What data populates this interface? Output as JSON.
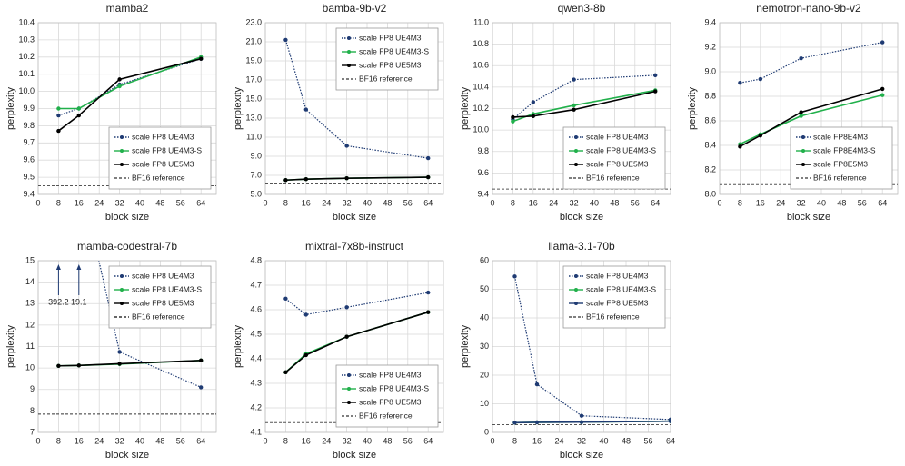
{
  "chart_data": [
    {
      "type": "line",
      "title": "mamba2",
      "x_label": "block size",
      "y_label": "perplexity",
      "x": [
        8,
        16,
        32,
        64
      ],
      "xlim": [
        0,
        70
      ],
      "xticks": [
        0,
        8,
        16,
        24,
        32,
        40,
        48,
        56,
        64
      ],
      "ylim": [
        9.4,
        10.4
      ],
      "yticks": [
        9.4,
        9.5,
        9.6,
        9.7,
        9.8,
        9.9,
        {
          "value": 10,
          "label": "10.0"
        },
        10.1,
        10.2,
        10.3,
        10.4
      ],
      "grid": true,
      "legend": "lower right",
      "series": [
        {
          "name": "scale FP8 UE4M3",
          "color": "#1f3b73",
          "style": "dotted",
          "values": [
            9.86,
            9.9,
            10.04,
            10.19
          ]
        },
        {
          "name": "scale FP8 UE4M3-S",
          "color": "#21b04b",
          "style": "solid",
          "values": [
            9.9,
            9.9,
            10.03,
            10.2
          ]
        },
        {
          "name": "scale FP8 UE5M3",
          "color": "#000000",
          "style": "solid",
          "values": [
            9.77,
            9.86,
            10.07,
            10.19
          ]
        }
      ],
      "reference": {
        "name": "BF16 reference",
        "value": 9.45,
        "color": "#555555"
      }
    },
    {
      "type": "line",
      "title": "bamba-9b-v2",
      "x_label": "block size",
      "y_label": "perplexity",
      "x": [
        8,
        16,
        32,
        64
      ],
      "xlim": [
        0,
        70
      ],
      "xticks": [
        0,
        8,
        16,
        24,
        32,
        40,
        48,
        56,
        64
      ],
      "ylim": [
        5,
        23
      ],
      "yticks": [
        {
          "value": 5,
          "label": "5.0"
        },
        {
          "value": 7,
          "label": "7.0"
        },
        {
          "value": 9,
          "label": "9.0"
        },
        {
          "value": 11,
          "label": "11.0"
        },
        {
          "value": 13,
          "label": "13.0"
        },
        {
          "value": 15,
          "label": "15.0"
        },
        {
          "value": 17,
          "label": "17.0"
        },
        {
          "value": 19,
          "label": "19.0"
        },
        {
          "value": 21,
          "label": "21.0"
        },
        {
          "value": 23,
          "label": "23.0"
        }
      ],
      "grid": true,
      "legend": "upper right",
      "series": [
        {
          "name": "scale FP8 UE4M3",
          "color": "#1f3b73",
          "style": "dotted",
          "values": [
            21.2,
            13.9,
            10.1,
            8.8
          ]
        },
        {
          "name": "scale FP8 UE4M3-S",
          "color": "#21b04b",
          "style": "solid",
          "values": [
            6.5,
            6.6,
            6.7,
            6.8
          ]
        },
        {
          "name": "scale FP8 UE5M3",
          "color": "#000000",
          "style": "solid",
          "values": [
            6.5,
            6.6,
            6.7,
            6.8
          ]
        }
      ],
      "reference": {
        "name": "BF16 reference",
        "value": 6.1,
        "color": "#555555"
      }
    },
    {
      "type": "line",
      "title": "qwen3-8b",
      "x_label": "block size",
      "y_label": "perplexity",
      "x": [
        8,
        16,
        32,
        64
      ],
      "xlim": [
        0,
        70
      ],
      "xticks": [
        0,
        8,
        16,
        24,
        32,
        40,
        48,
        56,
        64
      ],
      "ylim": [
        9.4,
        11
      ],
      "yticks": [
        9.4,
        9.6,
        9.8,
        {
          "value": 10,
          "label": "10.0"
        },
        10.2,
        10.4,
        10.6,
        10.8,
        {
          "value": 11,
          "label": "11.0"
        }
      ],
      "grid": true,
      "legend": "lower right",
      "series": [
        {
          "name": "scale FP8 UE4M3",
          "color": "#1f3b73",
          "style": "dotted",
          "values": [
            10.1,
            10.26,
            10.47,
            10.51
          ]
        },
        {
          "name": "scale FP8 UE4M3-S",
          "color": "#21b04b",
          "style": "solid",
          "values": [
            10.08,
            10.15,
            10.23,
            10.37
          ]
        },
        {
          "name": "scale FP8 UE5M3",
          "color": "#000000",
          "style": "solid",
          "values": [
            10.12,
            10.13,
            10.19,
            10.36
          ]
        }
      ],
      "reference": {
        "name": "BF16 reference",
        "value": 9.45,
        "color": "#555555"
      }
    },
    {
      "type": "line",
      "title": "nemotron-nano-9b-v2",
      "x_label": "block size",
      "y_label": "perplexity",
      "x": [
        8,
        16,
        32,
        64
      ],
      "xlim": [
        0,
        70
      ],
      "xticks": [
        0,
        8,
        16,
        24,
        32,
        40,
        48,
        56,
        64
      ],
      "ylim": [
        8,
        9.4
      ],
      "yticks": [
        {
          "value": 8,
          "label": "8.0"
        },
        8.2,
        8.4,
        8.6,
        8.8,
        {
          "value": 9,
          "label": "9.0"
        },
        9.2,
        9.4
      ],
      "grid": true,
      "legend": "lower right",
      "series": [
        {
          "name": "scale FP8E4M3",
          "color": "#1f3b73",
          "style": "dotted",
          "values": [
            8.91,
            8.94,
            9.11,
            9.24
          ]
        },
        {
          "name": "scale FP8E4M3-S",
          "color": "#21b04b",
          "style": "solid",
          "values": [
            8.41,
            8.49,
            8.64,
            8.81
          ]
        },
        {
          "name": "scale FP8E5M3",
          "color": "#000000",
          "style": "solid",
          "values": [
            8.39,
            8.48,
            8.67,
            8.86
          ]
        }
      ],
      "reference": {
        "name": "BF16 reference",
        "value": 8.08,
        "color": "#555555"
      }
    },
    {
      "type": "line",
      "title": "mamba-codestral-7b",
      "x_label": "block size",
      "y_label": "perplexity",
      "x": [
        8,
        16,
        32,
        64
      ],
      "xlim": [
        0,
        70
      ],
      "xticks": [
        0,
        8,
        16,
        24,
        32,
        40,
        48,
        56,
        64
      ],
      "ylim": [
        7,
        15
      ],
      "yticks": [
        7,
        8,
        9,
        10,
        11,
        12,
        13,
        14,
        15
      ],
      "grid": true,
      "legend": "upper right",
      "series": [
        {
          "name": "scale FP8 UE4M3",
          "color": "#1f3b73",
          "style": "dotted",
          "values": [
            392.2,
            19.1,
            10.75,
            9.1
          ],
          "value_labels": [
            "392.2",
            "19.1",
            null,
            null
          ]
        },
        {
          "name": "scale FP8 UE4M3-S",
          "color": "#21b04b",
          "style": "solid",
          "values": [
            10.1,
            10.12,
            10.18,
            10.35
          ]
        },
        {
          "name": "scale FP8 UE5M3",
          "color": "#000000",
          "style": "solid",
          "values": [
            10.1,
            10.12,
            10.2,
            10.35
          ]
        }
      ],
      "reference": {
        "name": "BF16 reference",
        "value": 7.85,
        "color": "#333333"
      }
    },
    {
      "type": "line",
      "title": "mixtral-7x8b-instruct",
      "x_label": "block size",
      "y_label": "perplexity",
      "x": [
        8,
        16,
        32,
        64
      ],
      "xlim": [
        0,
        70
      ],
      "xticks": [
        0,
        8,
        16,
        24,
        32,
        40,
        48,
        56,
        64
      ],
      "ylim": [
        4.1,
        4.8
      ],
      "yticks": [
        4.1,
        4.2,
        4.3,
        4.4,
        4.5,
        4.6,
        4.7,
        4.8
      ],
      "grid": true,
      "legend": "lower right",
      "series": [
        {
          "name": "scale FP8 UE4M3",
          "color": "#1f3b73",
          "style": "dotted",
          "values": [
            4.645,
            4.58,
            4.61,
            4.67
          ]
        },
        {
          "name": "scale FP8 UE4M3-S",
          "color": "#21b04b",
          "style": "solid",
          "values": [
            4.345,
            4.42,
            4.49,
            4.59
          ]
        },
        {
          "name": "scale FP8 UE5M3",
          "color": "#000000",
          "style": "solid",
          "values": [
            4.345,
            4.415,
            4.49,
            4.59
          ]
        }
      ],
      "reference": {
        "name": "BF16 reference",
        "value": 4.14,
        "color": "#555555"
      }
    },
    {
      "type": "line",
      "title": "llama-3.1-70b",
      "x_label": "block size",
      "y_label": "perplexity",
      "x": [
        8,
        16,
        32,
        64
      ],
      "xlim": [
        0,
        64
      ],
      "xticks": [
        0,
        8,
        16,
        24,
        32,
        40,
        48,
        56,
        64
      ],
      "ylim": [
        0,
        60
      ],
      "yticks": [
        0,
        10,
        20,
        30,
        40,
        50,
        60
      ],
      "grid": true,
      "legend": "upper right",
      "series": [
        {
          "name": "scale FP8 UE4M3",
          "color": "#1f3b73",
          "style": "dotted",
          "values": [
            54.5,
            16.8,
            5.8,
            4.5
          ]
        },
        {
          "name": "scale FP8 UE4M3-S",
          "color": "#21b04b",
          "style": "solid",
          "values": [
            3.4,
            3.5,
            3.6,
            3.9
          ]
        },
        {
          "name": "scale FP8 UE5M3",
          "color": "#1f3b73",
          "style": "solid",
          "values": [
            3.4,
            3.5,
            3.6,
            3.9
          ]
        }
      ],
      "reference": {
        "name": "BF16 reference",
        "value": 2.7,
        "color": "#555555"
      }
    }
  ]
}
